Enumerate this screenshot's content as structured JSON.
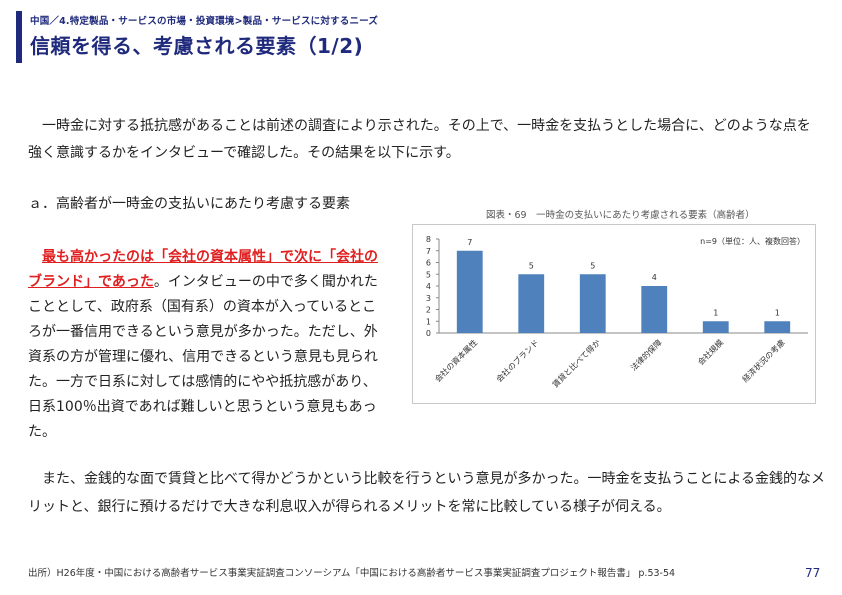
{
  "header": {
    "breadcrumb": "中国／4.特定製品・サービスの市場・投資環境>製品・サービスに対するニーズ",
    "title": "信頼を得る、考慮される要素（1/2)"
  },
  "body": {
    "intro": "一時金に対する抵抗感があることは前述の調査により示された。その上で、一時金を支払うとした場合に、どのような点を強く意識するかをインタビューで確認した。その結果を以下に示す。",
    "section_heading": "ａ．高齢者が一時金の支払いにあたり考慮する要素",
    "highlight_red": "最も高かったのは「会社の資本属性」で次に「会社のブランド」であった",
    "highlight_rest": "。インタビューの中で多く聞かれたこととして、政府系（国有系）の資本が入っているところが一番信用できるという意見が多かった。ただし、外資系の方が管理に優れ、信用できるという意見も見られた。一方で日系に対しては感情的にやや抵抗感があり、日系100％出資であれば難しいと思うという意見もあった。",
    "followup": "また、金銭的な面で賃貸と比べて得かどうかという比較を行うという意見が多かった。一時金を支払うことによる金銭的なメリットと、銀行に預けるだけで大きな利息収入が得られるメリットを常に比較している様子が伺える。"
  },
  "figure": {
    "caption": "図表・69　一時金の支払いにあたり考慮される要素（高齢者）",
    "note": "n=9（単位：人、複数回答）"
  },
  "chart_data": {
    "type": "bar",
    "categories": [
      "会社の資本属性",
      "会社のブランド",
      "賃貸と比べて得か",
      "法律的保障",
      "会社規模",
      "経済状況の考慮"
    ],
    "values": [
      7,
      5,
      5,
      4,
      1,
      1
    ],
    "ylim": [
      0,
      8
    ],
    "yticks": [
      0,
      1,
      2,
      3,
      4,
      5,
      6,
      7,
      8
    ],
    "data_labels": true,
    "grid": false,
    "bar_color": "#4f81bd"
  },
  "footer": {
    "source": "出所）H26年度・中国における高齢者サービス事業実証調査コンソーシアム「中国における高齢者サービス事業実証調査プロジェクト報告書」 p.53-54",
    "page_number": "77"
  },
  "colors": {
    "accent": "#1f2a7c",
    "highlight": "#e02020"
  }
}
